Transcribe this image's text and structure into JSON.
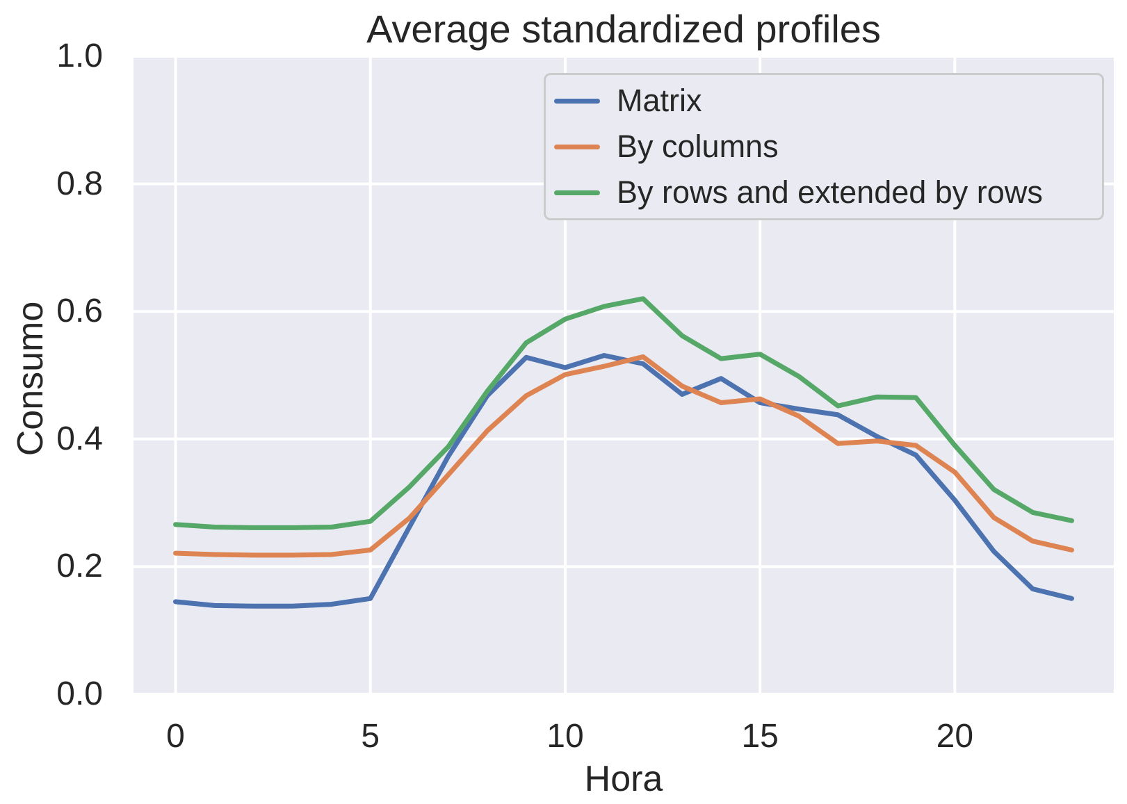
{
  "chart_data": {
    "type": "line",
    "title": "Average standardized profiles",
    "xlabel": "Hora",
    "ylabel": "Consumo",
    "x": [
      0,
      1,
      2,
      3,
      4,
      5,
      6,
      7,
      8,
      9,
      10,
      11,
      12,
      13,
      14,
      15,
      16,
      17,
      18,
      19,
      20,
      21,
      22,
      23
    ],
    "xlim": [
      -1.08,
      24.08
    ],
    "ylim": [
      0.0,
      1.0
    ],
    "xticks": [
      0,
      5,
      10,
      15,
      20
    ],
    "xticklabels": [
      "0",
      "5",
      "10",
      "15",
      "20"
    ],
    "yticks": [
      0.0,
      0.2,
      0.4,
      0.6,
      0.8,
      1.0
    ],
    "yticklabels": [
      "0.0",
      "0.2",
      "0.4",
      "0.6",
      "0.8",
      "1.0"
    ],
    "grid": true,
    "plot_background": "#EAEAF2",
    "grid_color": "#FFFFFF",
    "text_color": "#262626",
    "legend": {
      "position": "upper-right-inside",
      "background": "#EAEAF2",
      "border_color": "#CBCBCB"
    },
    "series": [
      {
        "name": "Matrix",
        "color": "#4C72B0",
        "values": [
          0.145,
          0.139,
          0.138,
          0.138,
          0.141,
          0.15,
          0.262,
          0.373,
          0.468,
          0.528,
          0.512,
          0.531,
          0.518,
          0.47,
          0.495,
          0.457,
          0.447,
          0.438,
          0.404,
          0.375,
          0.304,
          0.224,
          0.165,
          0.15
        ]
      },
      {
        "name": "By columns",
        "color": "#DD8452",
        "values": [
          0.221,
          0.219,
          0.218,
          0.218,
          0.219,
          0.226,
          0.276,
          0.344,
          0.413,
          0.468,
          0.501,
          0.514,
          0.529,
          0.483,
          0.457,
          0.463,
          0.436,
          0.393,
          0.397,
          0.39,
          0.348,
          0.277,
          0.24,
          0.226
        ]
      },
      {
        "name": "By rows and extended by rows",
        "color": "#55A868",
        "values": [
          0.266,
          0.262,
          0.261,
          0.261,
          0.262,
          0.271,
          0.325,
          0.388,
          0.475,
          0.551,
          0.588,
          0.608,
          0.62,
          0.562,
          0.526,
          0.533,
          0.498,
          0.452,
          0.466,
          0.465,
          0.39,
          0.321,
          0.285,
          0.272
        ]
      }
    ]
  }
}
